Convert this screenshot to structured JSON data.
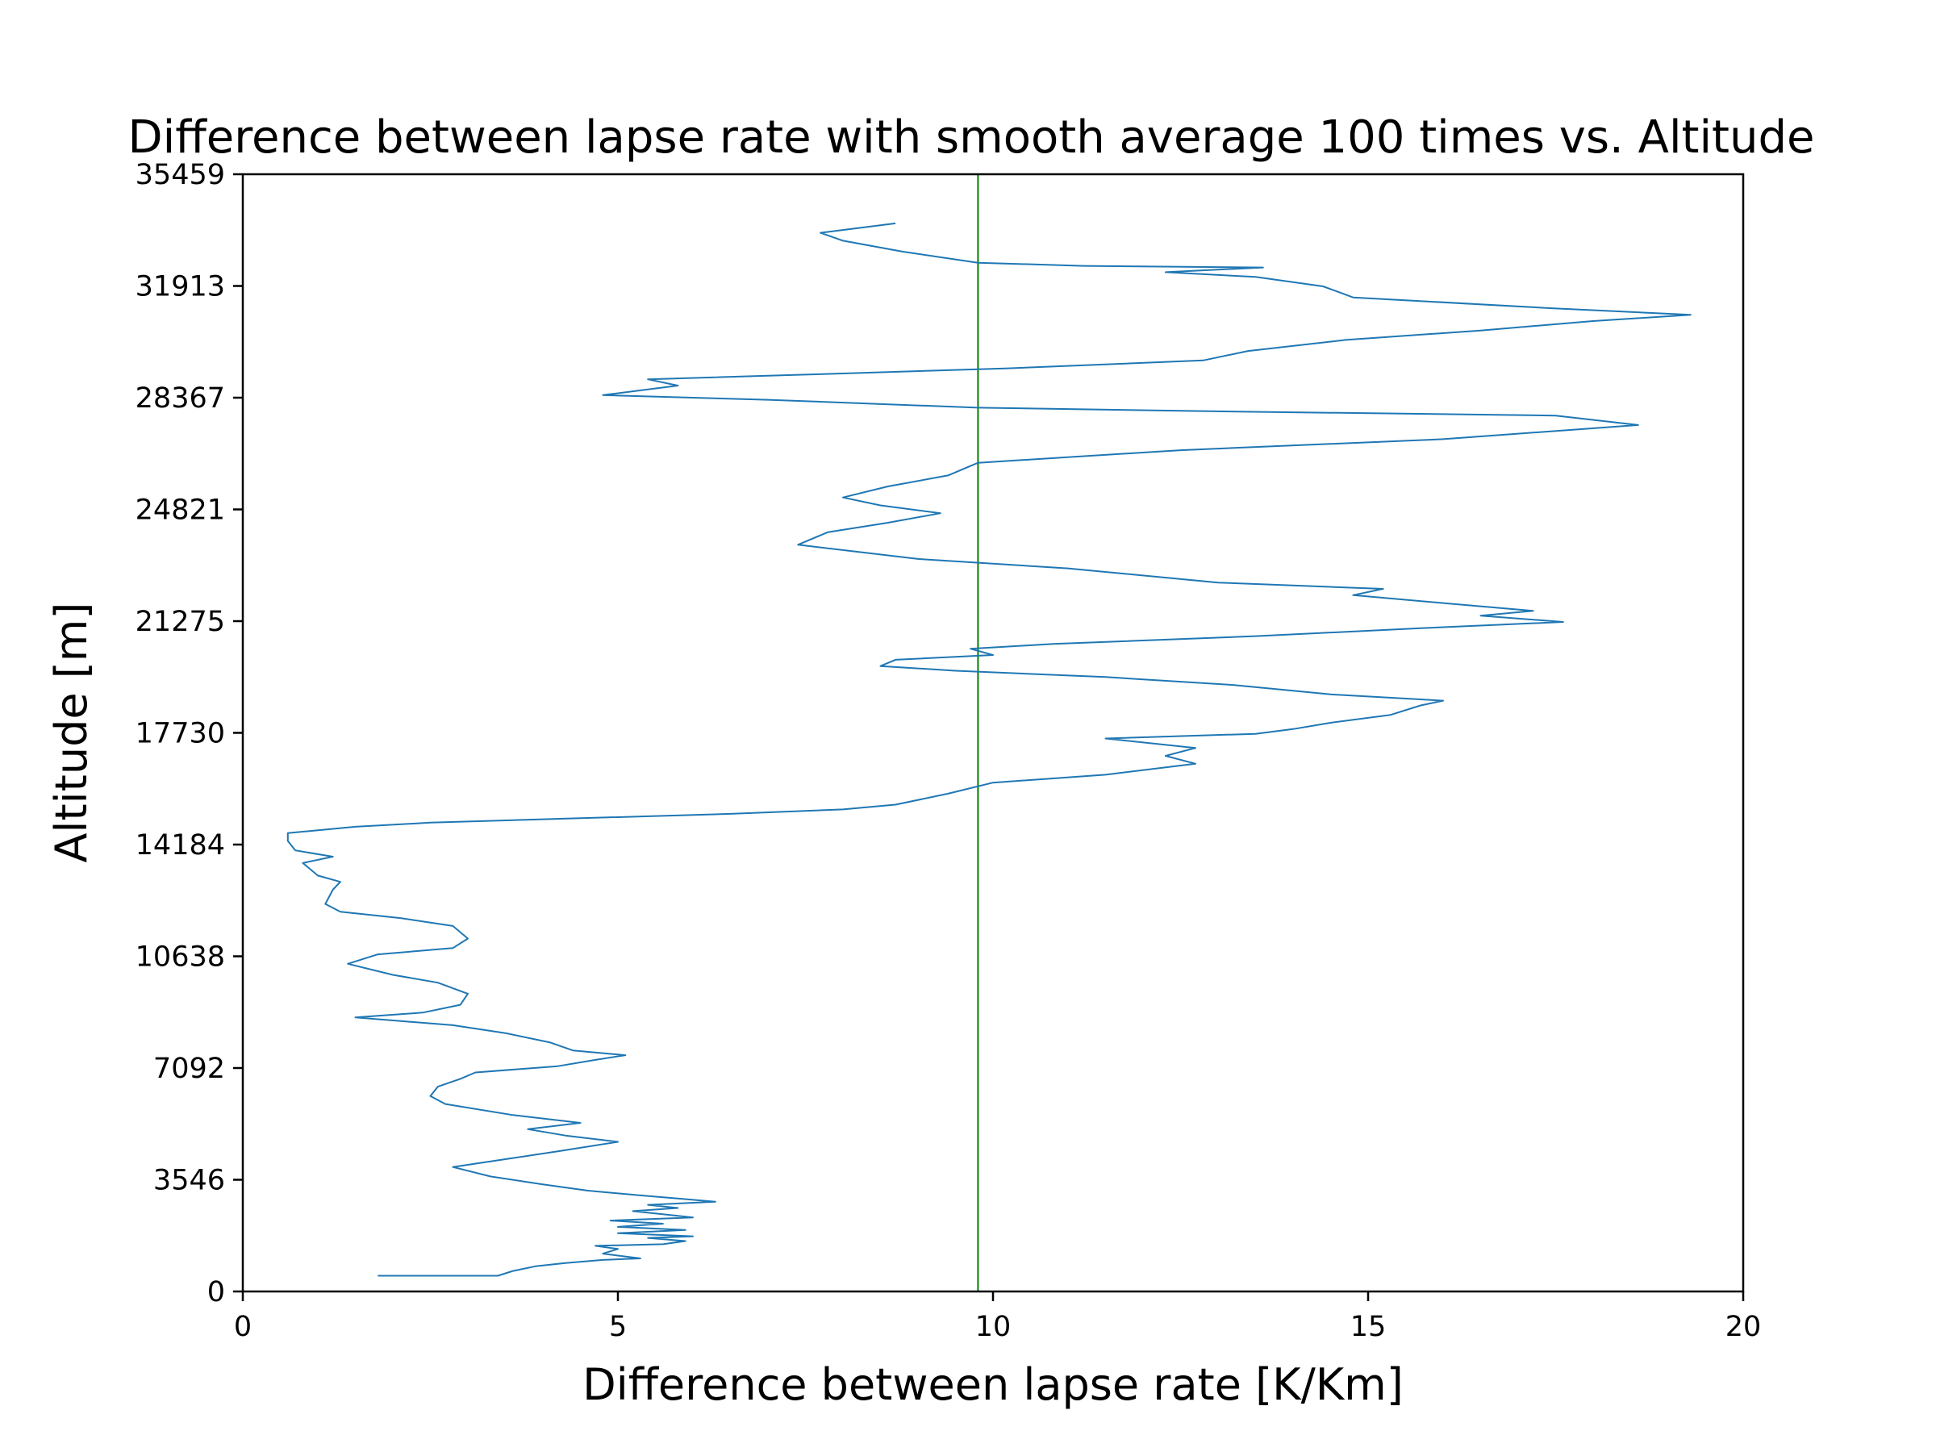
{
  "chart_data": {
    "type": "line",
    "title": "Difference between lapse rate with smooth average 100 times vs. Altitude",
    "xlabel": "Difference between lapse rate [K/Km]",
    "ylabel": "Altitude [m]",
    "xlim": [
      0,
      20
    ],
    "ylim": [
      0,
      35459
    ],
    "xticks": [
      "0",
      "5",
      "10",
      "15",
      "20"
    ],
    "yticks": [
      "0",
      "3546",
      "7092",
      "10638",
      "14184",
      "17730",
      "21275",
      "24821",
      "28367",
      "31913",
      "35459"
    ],
    "grid": false,
    "reference_line": {
      "x": 9.8,
      "color": "#008000"
    },
    "series": [
      {
        "color": "#1f77b4",
        "points": [
          [
            1.8,
            500
          ],
          [
            3.4,
            500
          ],
          [
            3.6,
            650
          ],
          [
            3.9,
            800
          ],
          [
            4.3,
            900
          ],
          [
            4.8,
            1000
          ],
          [
            5.3,
            1050
          ],
          [
            4.8,
            1200
          ],
          [
            5.0,
            1350
          ],
          [
            4.7,
            1450
          ],
          [
            5.6,
            1500
          ],
          [
            5.9,
            1600
          ],
          [
            5.4,
            1700
          ],
          [
            6.0,
            1750
          ],
          [
            5.0,
            1850
          ],
          [
            5.9,
            1950
          ],
          [
            5.0,
            2050
          ],
          [
            5.6,
            2150
          ],
          [
            4.9,
            2250
          ],
          [
            6.0,
            2350
          ],
          [
            5.6,
            2450
          ],
          [
            5.2,
            2550
          ],
          [
            5.8,
            2650
          ],
          [
            5.4,
            2750
          ],
          [
            6.3,
            2850
          ],
          [
            5.8,
            2950
          ],
          [
            5.3,
            3050
          ],
          [
            4.6,
            3200
          ],
          [
            4.0,
            3400
          ],
          [
            3.3,
            3650
          ],
          [
            2.8,
            3950
          ],
          [
            3.5,
            4200
          ],
          [
            4.2,
            4450
          ],
          [
            5.0,
            4750
          ],
          [
            4.3,
            4950
          ],
          [
            3.8,
            5150
          ],
          [
            4.5,
            5350
          ],
          [
            3.6,
            5600
          ],
          [
            2.7,
            5950
          ],
          [
            2.5,
            6200
          ],
          [
            2.6,
            6500
          ],
          [
            2.9,
            6750
          ],
          [
            3.1,
            6950
          ],
          [
            4.2,
            7150
          ],
          [
            4.7,
            7350
          ],
          [
            5.1,
            7500
          ],
          [
            4.4,
            7650
          ],
          [
            4.1,
            7900
          ],
          [
            3.5,
            8200
          ],
          [
            2.8,
            8450
          ],
          [
            1.5,
            8700
          ],
          [
            2.4,
            8850
          ],
          [
            2.9,
            9100
          ],
          [
            3.0,
            9450
          ],
          [
            2.6,
            9800
          ],
          [
            2.0,
            10050
          ],
          [
            1.4,
            10400
          ],
          [
            1.8,
            10700
          ],
          [
            2.8,
            10900
          ],
          [
            3.0,
            11200
          ],
          [
            2.8,
            11600
          ],
          [
            2.1,
            11850
          ],
          [
            1.3,
            12050
          ],
          [
            1.1,
            12300
          ],
          [
            1.2,
            12750
          ],
          [
            1.3,
            13000
          ],
          [
            1.0,
            13200
          ],
          [
            0.8,
            13600
          ],
          [
            1.2,
            13800
          ],
          [
            0.7,
            14000
          ],
          [
            0.6,
            14300
          ],
          [
            0.6,
            14550
          ],
          [
            1.5,
            14750
          ],
          [
            2.5,
            14880
          ],
          [
            4.5,
            15020
          ],
          [
            6.5,
            15160
          ],
          [
            8.0,
            15300
          ],
          [
            8.7,
            15450
          ],
          [
            9.4,
            15800
          ],
          [
            10.0,
            16150
          ],
          [
            11.5,
            16400
          ],
          [
            12.7,
            16750
          ],
          [
            12.3,
            17000
          ],
          [
            12.7,
            17250
          ],
          [
            11.5,
            17550
          ],
          [
            13.5,
            17700
          ],
          [
            14.0,
            17850
          ],
          [
            14.5,
            18050
          ],
          [
            15.3,
            18300
          ],
          [
            15.7,
            18600
          ],
          [
            16.0,
            18750
          ],
          [
            14.5,
            18950
          ],
          [
            13.2,
            19250
          ],
          [
            11.5,
            19500
          ],
          [
            9.5,
            19700
          ],
          [
            8.5,
            19850
          ],
          [
            8.7,
            20050
          ],
          [
            10.0,
            20200
          ],
          [
            9.7,
            20400
          ],
          [
            10.8,
            20550
          ],
          [
            13.5,
            20800
          ],
          [
            15.7,
            21050
          ],
          [
            17.6,
            21250
          ],
          [
            16.5,
            21450
          ],
          [
            17.2,
            21600
          ],
          [
            16.0,
            21850
          ],
          [
            14.8,
            22100
          ],
          [
            15.2,
            22300
          ],
          [
            13.0,
            22500
          ],
          [
            11.0,
            22950
          ],
          [
            9.0,
            23250
          ],
          [
            7.4,
            23700
          ],
          [
            7.8,
            24100
          ],
          [
            8.6,
            24400
          ],
          [
            9.3,
            24700
          ],
          [
            8.5,
            24950
          ],
          [
            8.0,
            25200
          ],
          [
            8.6,
            25550
          ],
          [
            9.4,
            25900
          ],
          [
            9.8,
            26300
          ],
          [
            12.5,
            26700
          ],
          [
            16.0,
            27050
          ],
          [
            18.6,
            27500
          ],
          [
            17.5,
            27800
          ],
          [
            12.5,
            27950
          ],
          [
            9.8,
            28050
          ],
          [
            7.0,
            28300
          ],
          [
            4.8,
            28450
          ],
          [
            5.8,
            28750
          ],
          [
            5.4,
            28950
          ],
          [
            7.5,
            29100
          ],
          [
            10.2,
            29300
          ],
          [
            12.8,
            29550
          ],
          [
            13.4,
            29850
          ],
          [
            14.7,
            30200
          ],
          [
            16.5,
            30500
          ],
          [
            18.0,
            30800
          ],
          [
            19.3,
            31000
          ],
          [
            17.5,
            31200
          ],
          [
            14.8,
            31550
          ],
          [
            14.4,
            31900
          ],
          [
            13.5,
            32200
          ],
          [
            12.3,
            32350
          ],
          [
            13.6,
            32500
          ],
          [
            11.2,
            32550
          ],
          [
            9.8,
            32650
          ],
          [
            8.8,
            33000
          ],
          [
            8.0,
            33350
          ],
          [
            7.7,
            33600
          ],
          [
            8.7,
            33900
          ]
        ]
      }
    ]
  }
}
